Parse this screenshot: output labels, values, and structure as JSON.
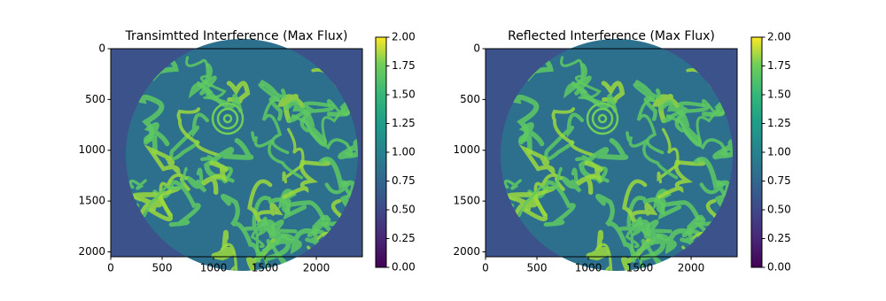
{
  "chart_data": [
    {
      "type": "image",
      "title": "Transimtted Interference (Max Flux)",
      "colormap": "viridis",
      "xlim": [
        0,
        2448
      ],
      "ylim": [
        2048,
        0
      ],
      "xticks": [
        0,
        500,
        1000,
        1500,
        2000
      ],
      "yticks": [
        0,
        500,
        1000,
        1500,
        2000
      ],
      "clim": [
        0,
        2
      ],
      "cticks": [
        {
          "value": 0,
          "label": "0.00"
        },
        {
          "value": 0.25,
          "label": "0.25"
        },
        {
          "value": 0.5,
          "label": "0.50"
        },
        {
          "value": 0.75,
          "label": "0.75"
        },
        {
          "value": 1,
          "label": "1.00"
        },
        {
          "value": 1.25,
          "label": "1.25"
        },
        {
          "value": 1.5,
          "label": "1.50"
        },
        {
          "value": 1.75,
          "label": "1.75"
        },
        {
          "value": 2,
          "label": "2.00"
        }
      ]
    },
    {
      "type": "image",
      "title": "Reflected Interference (Max Flux)",
      "colormap": "viridis",
      "xlim": [
        0,
        2448
      ],
      "ylim": [
        2048,
        0
      ],
      "xticks": [
        0,
        500,
        1000,
        1500,
        2000
      ],
      "yticks": [
        0,
        500,
        1000,
        1500,
        2000
      ],
      "clim": [
        0,
        2
      ],
      "cticks": [
        {
          "value": 0,
          "label": "0.00"
        },
        {
          "value": 0.25,
          "label": "0.25"
        },
        {
          "value": 0.5,
          "label": "0.50"
        },
        {
          "value": 0.75,
          "label": "0.75"
        },
        {
          "value": 1,
          "label": "1.00"
        },
        {
          "value": 1.25,
          "label": "1.25"
        },
        {
          "value": 1.5,
          "label": "1.50"
        },
        {
          "value": 1.75,
          "label": "1.75"
        },
        {
          "value": 2,
          "label": "2.00"
        }
      ]
    }
  ]
}
